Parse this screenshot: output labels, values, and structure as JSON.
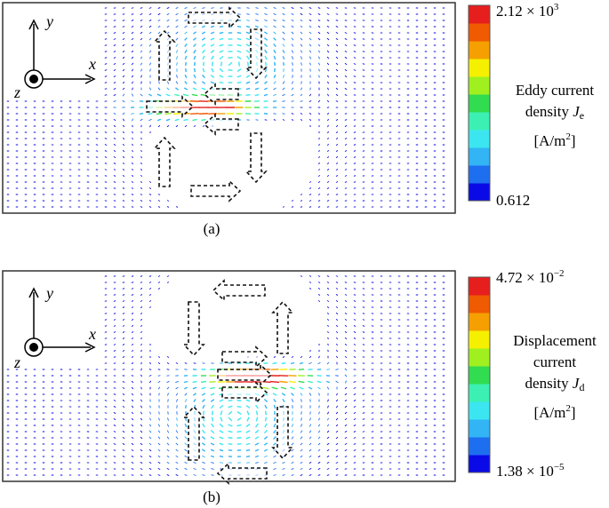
{
  "colormap": [
    "#0a0ae6",
    "#1e6ef0",
    "#32b4f5",
    "#3ce6f0",
    "#3cf0b4",
    "#32dc50",
    "#a0f020",
    "#f5f000",
    "#f5a000",
    "#f05a00",
    "#e61e1e"
  ],
  "panels": [
    {
      "caption": "(a)",
      "colorbar_max": "2.12 × 10",
      "colorbar_max_exp": "3",
      "colorbar_min": "0.612",
      "colorbar_min_exp": "",
      "label_lines": [
        "Eddy current",
        "density "
      ],
      "label_symbol": "J",
      "label_sub": "e",
      "label_unit": "[A/m",
      "label_unit_exp": "2",
      "label_unit_end": "]",
      "axes": {
        "y": "y",
        "x": "x",
        "z": "z"
      }
    },
    {
      "caption": "(b)",
      "colorbar_max": "4.72 × 10",
      "colorbar_max_exp": "−2",
      "colorbar_min": "1.38 × 10",
      "colorbar_min_exp": "−5",
      "label_lines": [
        "Displacement",
        "current",
        "density "
      ],
      "label_symbol": "J",
      "label_sub": "d",
      "label_unit": "[A/m",
      "label_unit_exp": "2",
      "label_unit_end": "]",
      "axes": {
        "y": "y",
        "x": "x",
        "z": "z"
      }
    }
  ]
}
